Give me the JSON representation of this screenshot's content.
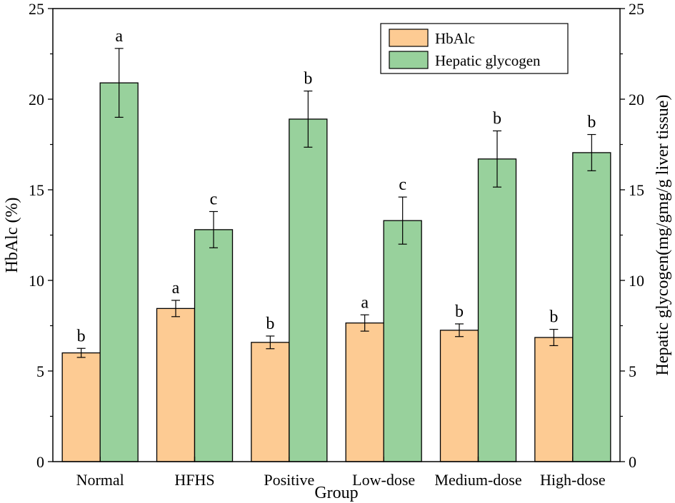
{
  "chart_data": {
    "type": "bar",
    "categories": [
      "Normal",
      "HFHS",
      "Positive",
      "Low-dose",
      "Medium-dose",
      "High-dose"
    ],
    "series": [
      {
        "name": "HbAlc",
        "axis": "left",
        "color": "#FDCB93",
        "values": [
          6.0,
          8.45,
          6.58,
          7.65,
          7.25,
          6.85
        ],
        "errors": [
          0.25,
          0.45,
          0.35,
          0.45,
          0.35,
          0.45
        ],
        "labels": [
          "b",
          "a",
          "b",
          "a",
          "b",
          "b"
        ]
      },
      {
        "name": "Hepatic glycogen",
        "axis": "right",
        "color": "#98D19C",
        "values": [
          20.9,
          12.8,
          18.9,
          13.3,
          16.7,
          17.05
        ],
        "errors": [
          1.9,
          1.0,
          1.55,
          1.3,
          1.55,
          1.0
        ],
        "labels": [
          "a",
          "c",
          "b",
          "c",
          "b",
          "b"
        ]
      }
    ],
    "xlabel": "Group",
    "ylabel": "HbAlc (%)",
    "ylabel_right": "Hepatic glycogen(mg/gmg/g liver tissue)",
    "ylim": [
      0,
      25
    ],
    "ylim_right": [
      0,
      25
    ],
    "yticks": [
      "0",
      "5",
      "10",
      "15",
      "20",
      "25"
    ],
    "yticks_right": [
      "0",
      "5",
      "10",
      "15",
      "20",
      "25"
    ],
    "legend": "top-right",
    "grid": false
  }
}
